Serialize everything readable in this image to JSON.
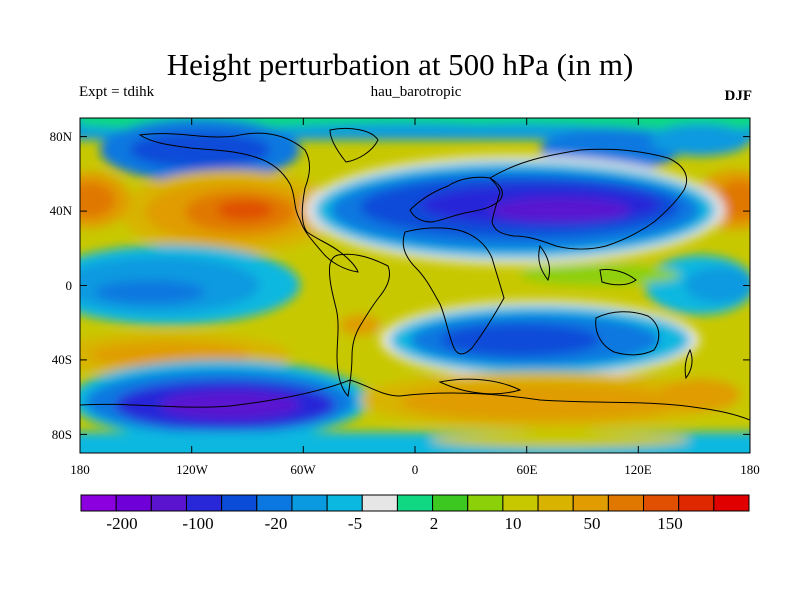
{
  "header": {
    "title": "Height perturbation at 500 hPa (in m)",
    "left_label": "Expt = tdihk",
    "center_label": "hau_barotropic",
    "right_label": "DJF"
  },
  "map": {
    "projection": "cylindrical equidistant",
    "field": "500 hPa height perturbation",
    "units": "m",
    "lon_range": [
      -180,
      180
    ],
    "lat_range": [
      -90,
      90
    ],
    "x_ticks": [
      "180",
      "120W",
      "60W",
      "0",
      "60E",
      "120E",
      "180"
    ],
    "y_ticks": [
      "80N",
      "40N",
      "0",
      "40S",
      "80S"
    ],
    "features": [
      "coastlines"
    ]
  },
  "colorbar": {
    "colors": [
      "#8c00e0",
      "#7000d8",
      "#5a14d0",
      "#2828d8",
      "#0a4cd8",
      "#0a78e0",
      "#0a9ae0",
      "#0ab8e0",
      "#e6e6e6",
      "#10d882",
      "#3cc820",
      "#8cd00a",
      "#c8c800",
      "#d8b400",
      "#e09c00",
      "#e07800",
      "#e05000",
      "#e02800",
      "#e00000"
    ],
    "labels": [
      "-200",
      "-100",
      "-20",
      "-5",
      "2",
      "10",
      "50",
      "150"
    ]
  }
}
